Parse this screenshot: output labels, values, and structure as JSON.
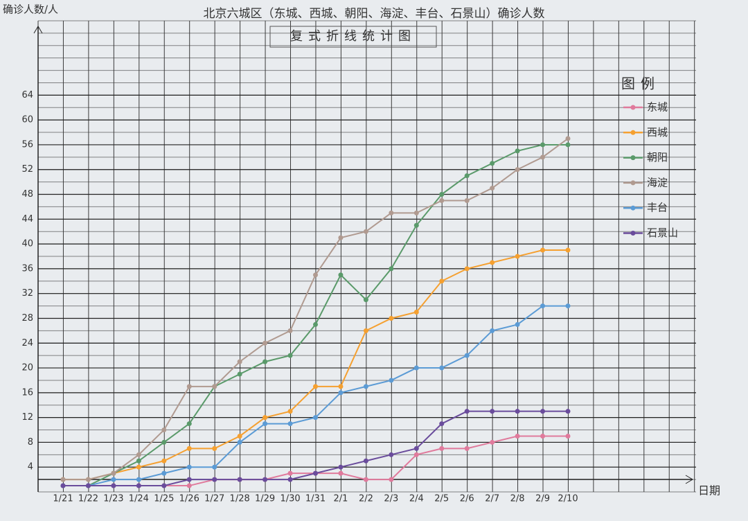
{
  "chart_data": {
    "type": "line",
    "title": "北京六城区（东城、西城、朝阳、海淀、丰台、石景山）确诊人数",
    "subtitle": "复式折线统计图",
    "y_label": "确诊人数/人",
    "x_label": "日期",
    "legend_title": "图例",
    "legend": "right",
    "grid": true,
    "categories": [
      "1/21",
      "1/22",
      "1/23",
      "1/24",
      "1/25",
      "1/26",
      "1/27",
      "1/28",
      "1/29",
      "1/30",
      "1/31",
      "2/1",
      "2/2",
      "2/3",
      "2/4",
      "2/5",
      "2/6",
      "2/7",
      "2/8",
      "2/9",
      "2/10"
    ],
    "ylim": [
      0,
      76
    ],
    "yticks": [
      4,
      8,
      12,
      16,
      20,
      24,
      28,
      32,
      36,
      40,
      44,
      48,
      52,
      56,
      60,
      64
    ],
    "series": [
      {
        "name": "东城",
        "color": "#e07a9c",
        "values": [
          1,
          1,
          1,
          1,
          1,
          1,
          2,
          2,
          2,
          3,
          3,
          3,
          2,
          2,
          6,
          7,
          7,
          8,
          9,
          9,
          9
        ]
      },
      {
        "name": "西城",
        "color": "#f5a030",
        "values": [
          2,
          2,
          3,
          4,
          5,
          7,
          7,
          9,
          12,
          13,
          17,
          17,
          26,
          28,
          29,
          34,
          36,
          37,
          38,
          39,
          39
        ]
      },
      {
        "name": "朝阳",
        "color": "#5a9a6a",
        "values": [
          1,
          1,
          3,
          5,
          8,
          11,
          17,
          19,
          21,
          22,
          27,
          35,
          31,
          36,
          43,
          48,
          51,
          53,
          55,
          56,
          56
        ]
      },
      {
        "name": "海淀",
        "color": "#b09a90",
        "values": [
          2,
          2,
          3,
          6,
          10,
          17,
          17,
          21,
          24,
          26,
          35,
          41,
          42,
          45,
          45,
          47,
          47,
          49,
          52,
          54,
          57
        ]
      },
      {
        "name": "丰台",
        "color": "#5b9bd5",
        "values": [
          1,
          1,
          2,
          2,
          3,
          4,
          4,
          8,
          11,
          11,
          12,
          16,
          17,
          18,
          20,
          20,
          22,
          26,
          27,
          30,
          30
        ]
      },
      {
        "name": "石景山",
        "color": "#6a4c9c",
        "values": [
          1,
          1,
          1,
          1,
          1,
          2,
          2,
          2,
          2,
          2,
          3,
          4,
          5,
          6,
          7,
          11,
          13,
          13,
          13,
          13,
          13
        ]
      }
    ]
  }
}
